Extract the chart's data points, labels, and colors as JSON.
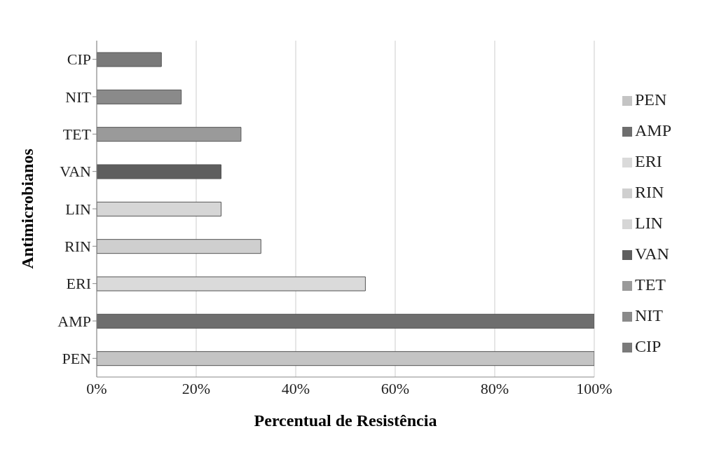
{
  "chart_data": {
    "type": "bar",
    "orientation": "horizontal",
    "stacked": true,
    "xlabel": "Percentual de Resistência",
    "ylabel": "Antimicrobianos",
    "categories": [
      "CIP",
      "NIT",
      "TET",
      "VAN",
      "LIN",
      "RIN",
      "ERI",
      "AMP",
      "PEN"
    ],
    "series": [
      {
        "name": "PEN",
        "color": "#c4c4c4",
        "values": [
          null,
          null,
          null,
          null,
          null,
          null,
          null,
          null,
          100
        ]
      },
      {
        "name": "AMP",
        "color": "#6e6e6e",
        "values": [
          null,
          null,
          null,
          null,
          null,
          null,
          null,
          100,
          null
        ]
      },
      {
        "name": "ERI",
        "color": "#dadada",
        "values": [
          null,
          null,
          null,
          null,
          null,
          null,
          54,
          null,
          null
        ]
      },
      {
        "name": "RIN",
        "color": "#cfcfcf",
        "values": [
          null,
          null,
          null,
          null,
          null,
          33,
          null,
          null,
          null
        ]
      },
      {
        "name": "LIN",
        "color": "#d6d6d6",
        "values": [
          null,
          null,
          null,
          null,
          25,
          null,
          null,
          null,
          null
        ]
      },
      {
        "name": "VAN",
        "color": "#5e5e5e",
        "values": [
          null,
          null,
          null,
          25,
          null,
          null,
          null,
          null,
          null
        ]
      },
      {
        "name": "TET",
        "color": "#9a9a9a",
        "values": [
          null,
          null,
          29,
          null,
          null,
          null,
          null,
          null,
          null
        ]
      },
      {
        "name": "NIT",
        "color": "#8a8a8a",
        "values": [
          null,
          17,
          null,
          null,
          null,
          null,
          null,
          null,
          null
        ]
      },
      {
        "name": "CIP",
        "color": "#7a7a7a",
        "values": [
          13,
          null,
          null,
          null,
          null,
          null,
          null,
          null,
          null
        ]
      }
    ],
    "xlim": [
      0,
      100
    ],
    "xticks": [
      {
        "value": 0,
        "label": "0%"
      },
      {
        "value": 20,
        "label": "20%"
      },
      {
        "value": 40,
        "label": "40%"
      },
      {
        "value": 60,
        "label": "60%"
      },
      {
        "value": 80,
        "label": "80%"
      },
      {
        "value": 100,
        "label": "100%"
      }
    ],
    "grid": "x",
    "legend": "right"
  }
}
